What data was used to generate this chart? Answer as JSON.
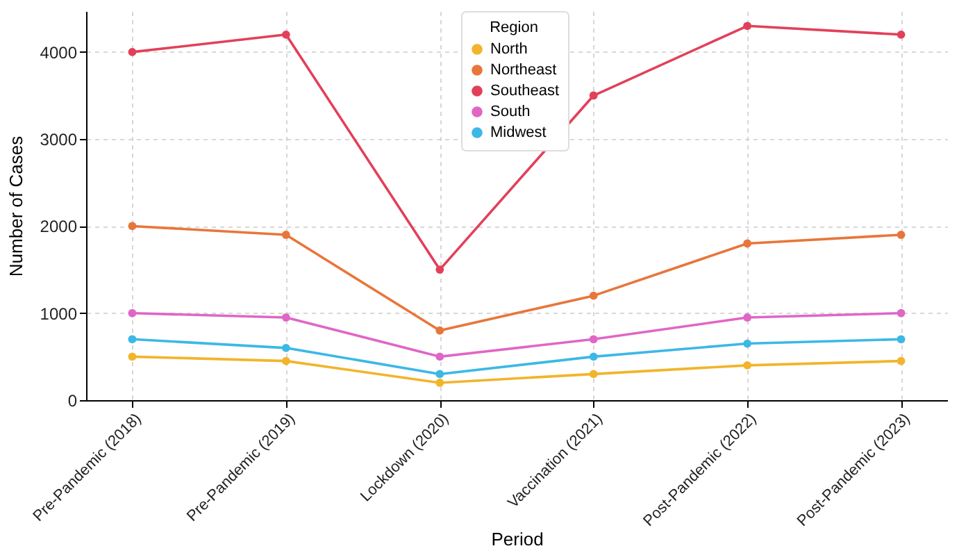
{
  "chart_data": {
    "type": "line",
    "xlabel": "Period",
    "ylabel": "Number of Cases",
    "legend_title": "Region",
    "categories": [
      "Pre-Pandemic (2018)",
      "Pre-Pandemic (2019)",
      "Lockdown (2020)",
      "Vaccination (2021)",
      "Post-Pandemic (2022)",
      "Post-Pandemic (2023)"
    ],
    "series": [
      {
        "name": "North",
        "color": "#f2b42a",
        "values": [
          500,
          450,
          200,
          300,
          400,
          450
        ]
      },
      {
        "name": "Northeast",
        "color": "#e8763a",
        "values": [
          2000,
          1900,
          800,
          1200,
          1800,
          1900
        ]
      },
      {
        "name": "Southeast",
        "color": "#e2405a",
        "values": [
          4000,
          4200,
          1500,
          3500,
          4300,
          4200
        ]
      },
      {
        "name": "South",
        "color": "#e066c6",
        "values": [
          1000,
          950,
          500,
          700,
          950,
          1000
        ]
      },
      {
        "name": "Midwest",
        "color": "#3cb8e6",
        "values": [
          700,
          600,
          300,
          500,
          650,
          700
        ]
      }
    ],
    "ylim": [
      0,
      4470
    ],
    "yticks": [
      0,
      1000,
      2000,
      3000,
      4000
    ],
    "grid": true,
    "legend": "top",
    "marker": "circle",
    "line_style": "solid"
  }
}
